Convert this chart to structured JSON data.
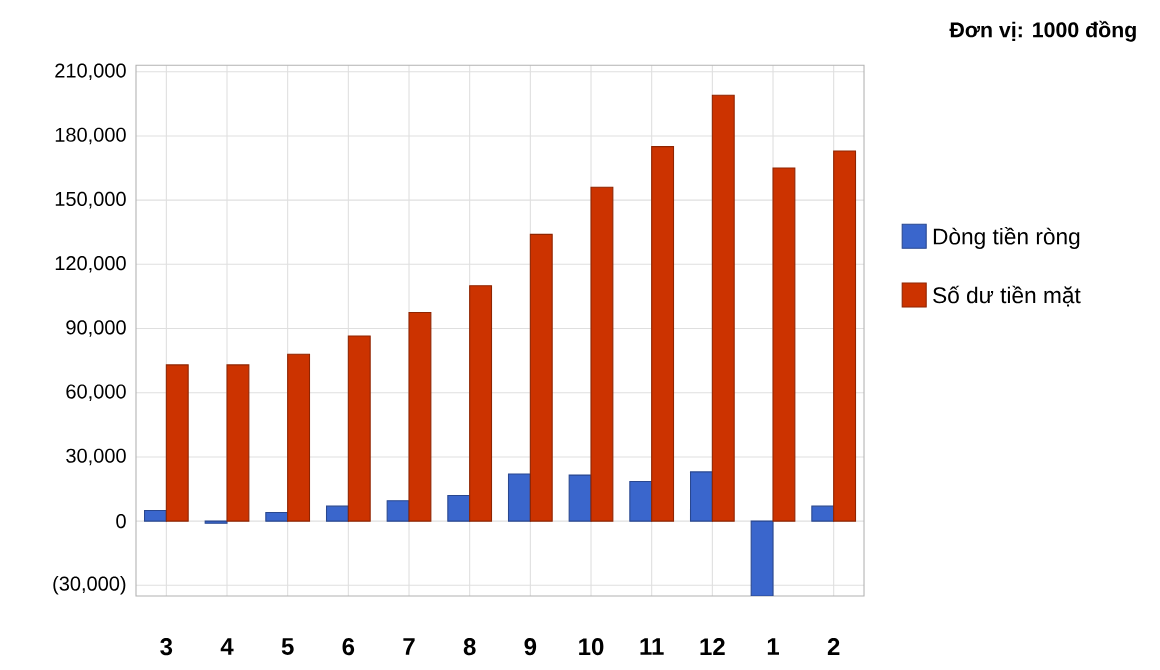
{
  "chart_data": {
    "type": "bar",
    "annotations": [
      "Đơn vị: 1000 đồng"
    ],
    "categories": [
      "3",
      "4",
      "5",
      "6",
      "7",
      "8",
      "9",
      "10",
      "11",
      "12",
      "1",
      "2"
    ],
    "series": [
      {
        "name": "Dòng tiền ròng",
        "color": "#3a66cc",
        "values": [
          5000,
          -1000,
          4000,
          7000,
          9500,
          12000,
          22000,
          21500,
          18500,
          23000,
          -35000,
          7000
        ]
      },
      {
        "name": "Số dư tiền mặt",
        "color": "#cc3300",
        "values": [
          73000,
          73000,
          78000,
          86500,
          97500,
          110000,
          134000,
          156000,
          175000,
          199000,
          165000,
          173000
        ]
      }
    ],
    "ylim": [
      -35000,
      213000
    ],
    "yticks": [
      {
        "value": -30000,
        "label": "(30,000)"
      },
      {
        "value": 0,
        "label": "0"
      },
      {
        "value": 30000,
        "label": "30,000"
      },
      {
        "value": 60000,
        "label": "60,000"
      },
      {
        "value": 90000,
        "label": "90,000"
      },
      {
        "value": 120000,
        "label": "120,000"
      },
      {
        "value": 150000,
        "label": "150,000"
      },
      {
        "value": 180000,
        "label": "180,000"
      },
      {
        "value": 210000,
        "label": "210,000"
      }
    ],
    "grid": true,
    "legend": "right"
  }
}
